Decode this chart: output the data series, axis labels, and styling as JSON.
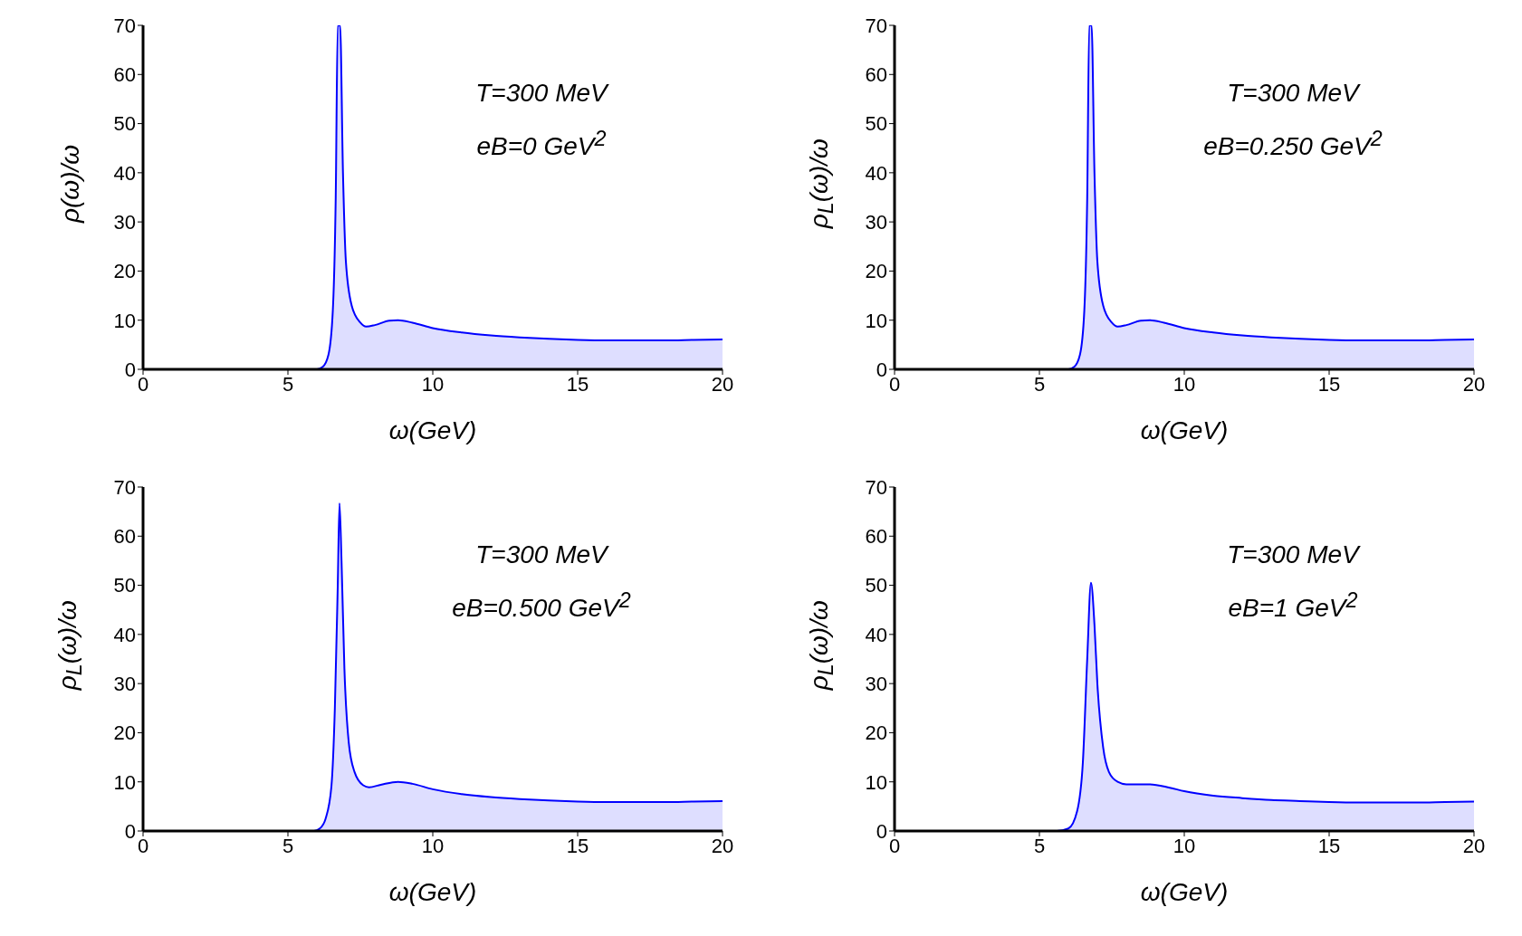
{
  "chart_data": [
    {
      "type": "area",
      "xlabel": "ω(GeV)",
      "ylabel": "ρ(ω)/ω",
      "annotations": [
        "T=300  MeV",
        "eB=0 GeV$^{2}$"
      ],
      "x": [
        0,
        6.0,
        6.2,
        6.4,
        6.55,
        6.65,
        6.72,
        6.8,
        6.9,
        7.0,
        7.2,
        7.5,
        7.7,
        8.0,
        8.5,
        8.8,
        9.3,
        10,
        11,
        12,
        13,
        14,
        15,
        16,
        17,
        18,
        19,
        20
      ],
      "series": [
        {
          "color": "#0000ff",
          "values": [
            0,
            0,
            0.5,
            3,
            12,
            35,
            70,
            70,
            40,
            22,
            13,
            9.5,
            8.7,
            9.0,
            9.9,
            10,
            9.5,
            8.4,
            7.5,
            6.9,
            6.5,
            6.2,
            6.0,
            5.9,
            5.9,
            5.9,
            6.0,
            6.1
          ]
        }
      ],
      "xlim": [
        0,
        20
      ],
      "ylim": [
        0,
        70
      ],
      "xticks": [
        0,
        5,
        10,
        15,
        20
      ],
      "yticks": [
        0,
        10,
        20,
        30,
        40,
        50,
        60,
        70
      ]
    },
    {
      "type": "area",
      "xlabel": "ω(GeV)",
      "ylabel": "ρ$_{L}$(ω)/ω",
      "annotations": [
        "T=300  MeV",
        "eB=0.250 GeV$^{2}$"
      ],
      "x": [
        0,
        6.0,
        6.2,
        6.4,
        6.55,
        6.65,
        6.72,
        6.8,
        6.9,
        7.0,
        7.2,
        7.5,
        7.7,
        8.0,
        8.5,
        8.8,
        9.3,
        10,
        11,
        12,
        13,
        14,
        15,
        16,
        17,
        18,
        19,
        20
      ],
      "series": [
        {
          "color": "#0000ff",
          "values": [
            0,
            0,
            0.5,
            3,
            12,
            35,
            70,
            70,
            40,
            22,
            13,
            9.5,
            8.7,
            9.0,
            9.9,
            10,
            9.5,
            8.4,
            7.5,
            6.9,
            6.5,
            6.2,
            6.0,
            5.9,
            5.9,
            5.9,
            6.0,
            6.1
          ]
        }
      ],
      "xlim": [
        0,
        20
      ],
      "ylim": [
        0,
        70
      ],
      "xticks": [
        0,
        5,
        10,
        15,
        20
      ],
      "yticks": [
        0,
        10,
        20,
        30,
        40,
        50,
        60,
        70
      ]
    },
    {
      "type": "area",
      "xlabel": "ω(GeV)",
      "ylabel": "ρ$_{L}$(ω)/ω",
      "annotations": [
        "T=300  MeV",
        "eB=0.500 GeV$^{2}$"
      ],
      "x": [
        0,
        5.9,
        6.1,
        6.3,
        6.5,
        6.62,
        6.72,
        6.78,
        6.85,
        6.95,
        7.1,
        7.3,
        7.6,
        7.8,
        8.2,
        8.8,
        9.3,
        10,
        11,
        12,
        13,
        14,
        15,
        16,
        17,
        18,
        19,
        20
      ],
      "series": [
        {
          "color": "#0000ff",
          "values": [
            0,
            0,
            0.5,
            2.5,
            9,
            25,
            50,
            66.7,
            55,
            33,
            18,
            12,
            9.3,
            8.9,
            9.4,
            10,
            9.6,
            8.5,
            7.5,
            6.9,
            6.5,
            6.2,
            6.0,
            5.9,
            5.9,
            5.9,
            6.0,
            6.1
          ]
        }
      ],
      "xlim": [
        0,
        20
      ],
      "ylim": [
        0,
        70
      ],
      "xticks": [
        0,
        5,
        10,
        15,
        20
      ],
      "yticks": [
        0,
        10,
        20,
        30,
        40,
        50,
        60,
        70
      ]
    },
    {
      "type": "area",
      "xlabel": "ω(GeV)",
      "ylabel": "ρ$_{L}$(ω)/ω",
      "annotations": [
        "T=300  MeV",
        "eB=1 GeV$^{2}$"
      ],
      "x": [
        0,
        5.6,
        6.0,
        6.3,
        6.5,
        6.65,
        6.78,
        6.9,
        7.0,
        7.2,
        7.4,
        7.7,
        8.0,
        8.8,
        9.5,
        10,
        11,
        12,
        13,
        14,
        15,
        16,
        17,
        18,
        19,
        20
      ],
      "series": [
        {
          "color": "#0000ff",
          "values": [
            0,
            0,
            0.5,
            4,
            14,
            35,
            50.5,
            42,
            30,
            17,
            12,
            10,
            9.5,
            9.5,
            8.8,
            8.1,
            7.2,
            6.7,
            6.3,
            6.1,
            5.9,
            5.8,
            5.8,
            5.8,
            5.9,
            6.0
          ]
        }
      ],
      "xlim": [
        0,
        20
      ],
      "ylim": [
        0,
        70
      ],
      "xticks": [
        0,
        5,
        10,
        15,
        20
      ],
      "yticks": [
        0,
        10,
        20,
        30,
        40,
        50,
        60,
        70
      ]
    }
  ]
}
